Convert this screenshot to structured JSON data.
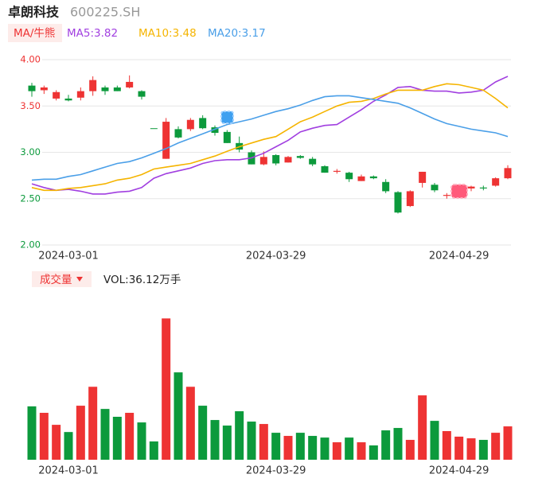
{
  "chart_data": [
    {
      "type": "candlestick",
      "title": "卓朗科技",
      "subtitle": "600225.SH",
      "legend_title": "MA/牛熊",
      "categories": [
        null,
        null,
        null,
        "2024-03-01",
        null,
        null,
        null,
        null,
        null,
        null,
        null,
        null,
        null,
        null,
        null,
        null,
        null,
        null,
        null,
        null,
        "2024-03-29",
        null,
        null,
        null,
        null,
        null,
        null,
        null,
        null,
        null,
        null,
        null,
        null,
        null,
        null,
        "2024-04-29",
        null,
        null,
        null,
        null
      ],
      "open": [
        3.72,
        3.67,
        3.58,
        3.58,
        3.59,
        3.66,
        3.7,
        3.7,
        3.7,
        3.66,
        3.26,
        2.93,
        3.25,
        3.25,
        3.37,
        3.27,
        3.22,
        3.1,
        3.0,
        2.87,
        2.97,
        2.89,
        2.96,
        2.93,
        2.85,
        2.79,
        2.78,
        2.69,
        2.74,
        2.68,
        2.57,
        2.42,
        2.67,
        2.65,
        2.53,
        2.55,
        2.61,
        2.62,
        2.64,
        2.72
      ],
      "high": [
        3.75,
        3.72,
        3.67,
        3.62,
        3.7,
        3.82,
        3.72,
        3.72,
        3.83,
        3.67,
        3.26,
        3.37,
        3.28,
        3.37,
        3.4,
        3.29,
        3.24,
        3.17,
        3.02,
        3.01,
        2.98,
        2.96,
        2.97,
        2.95,
        2.86,
        2.82,
        2.79,
        2.76,
        2.75,
        2.71,
        2.58,
        2.59,
        2.79,
        2.67,
        2.56,
        2.57,
        2.64,
        2.64,
        2.73,
        2.86
      ],
      "low": [
        3.6,
        3.63,
        3.56,
        3.55,
        3.56,
        3.61,
        3.62,
        3.66,
        3.69,
        3.57,
        3.26,
        2.93,
        3.15,
        3.23,
        3.25,
        3.18,
        3.1,
        3.0,
        2.87,
        2.86,
        2.86,
        2.89,
        2.93,
        2.85,
        2.78,
        2.77,
        2.68,
        2.69,
        2.71,
        2.56,
        2.34,
        2.41,
        2.62,
        2.57,
        2.5,
        2.52,
        2.58,
        2.59,
        2.63,
        2.71
      ],
      "close": [
        3.66,
        3.7,
        3.65,
        3.56,
        3.66,
        3.78,
        3.66,
        3.66,
        3.76,
        3.6,
        3.26,
        3.33,
        3.16,
        3.35,
        3.26,
        3.21,
        3.1,
        3.03,
        2.87,
        2.95,
        2.88,
        2.95,
        2.94,
        2.87,
        2.78,
        2.8,
        2.71,
        2.74,
        2.72,
        2.58,
        2.35,
        2.58,
        2.79,
        2.59,
        2.54,
        2.56,
        2.63,
        2.61,
        2.72,
        2.83
      ],
      "up_color": "#ee3333",
      "down_color": "#0c9a3c",
      "series": [
        {
          "name": "MA5:3.82",
          "color": "#a13fe0",
          "values": [
            2.66,
            2.62,
            2.59,
            2.6,
            2.58,
            2.55,
            2.55,
            2.57,
            2.58,
            2.62,
            2.72,
            2.77,
            2.8,
            2.83,
            2.88,
            2.91,
            2.92,
            2.92,
            2.94,
            2.99,
            3.06,
            3.13,
            3.22,
            3.26,
            3.29,
            3.3,
            3.38,
            3.46,
            3.55,
            3.62,
            3.7,
            3.71,
            3.67,
            3.66,
            3.66,
            3.64,
            3.65,
            3.67,
            3.76,
            3.82
          ]
        },
        {
          "name": "MA10:3.48",
          "color": "#f5b400",
          "values": [
            2.62,
            2.59,
            2.59,
            2.61,
            2.62,
            2.64,
            2.66,
            2.7,
            2.72,
            2.76,
            2.82,
            2.84,
            2.86,
            2.88,
            2.92,
            2.96,
            3.01,
            3.06,
            3.1,
            3.14,
            3.17,
            3.25,
            3.33,
            3.38,
            3.44,
            3.5,
            3.54,
            3.55,
            3.58,
            3.63,
            3.67,
            3.67,
            3.67,
            3.71,
            3.74,
            3.73,
            3.7,
            3.67,
            3.58,
            3.48
          ]
        },
        {
          "name": "MA20:3.17",
          "color": "#4a9fe8",
          "values": [
            2.7,
            2.71,
            2.71,
            2.74,
            2.76,
            2.8,
            2.84,
            2.88,
            2.9,
            2.94,
            2.99,
            3.04,
            3.1,
            3.15,
            3.2,
            3.25,
            3.3,
            3.33,
            3.36,
            3.4,
            3.44,
            3.47,
            3.51,
            3.56,
            3.6,
            3.61,
            3.61,
            3.59,
            3.57,
            3.55,
            3.53,
            3.48,
            3.42,
            3.36,
            3.31,
            3.28,
            3.25,
            3.23,
            3.21,
            3.17
          ]
        }
      ],
      "ylim": [
        2,
        4
      ],
      "yticks": [
        {
          "value": 4,
          "label": "4.00"
        },
        {
          "value": 3.5,
          "label": "3.50"
        },
        {
          "value": 3,
          "label": "3.00"
        },
        {
          "value": 2.5,
          "label": "2.50"
        },
        {
          "value": 2,
          "label": "2.00"
        }
      ],
      "ytick_colors": [
        "#ee3333",
        "#ee3333",
        "#0c9a3c",
        "#0c9a3c",
        "#0c9a3c"
      ],
      "grid": true
    },
    {
      "type": "bar",
      "title": "成交量",
      "annotation": "VOL:36.12万手",
      "categories": [
        null,
        null,
        null,
        "2024-03-01",
        null,
        null,
        null,
        null,
        null,
        null,
        null,
        null,
        null,
        null,
        null,
        null,
        null,
        null,
        null,
        null,
        "2024-03-29",
        null,
        null,
        null,
        null,
        null,
        null,
        null,
        null,
        null,
        null,
        null,
        null,
        null,
        null,
        "2024-04-29",
        null,
        null,
        null,
        null
      ],
      "values": [
        57.8,
        50.8,
        37.8,
        30,
        58.5,
        79,
        55,
        46.5,
        50.8,
        40.4,
        19.8,
        153,
        94.6,
        79,
        58.5,
        43,
        37,
        52.5,
        41.3,
        38.7,
        29.2,
        25.8,
        29.2,
        25.8,
        24,
        18.9,
        24,
        18.9,
        15.5,
        31.8,
        34.4,
        21.5,
        69.7,
        42.1,
        31,
        25,
        23.2,
        21.5,
        29.2,
        36.12
      ],
      "ylim": [
        0,
        180
      ]
    }
  ]
}
